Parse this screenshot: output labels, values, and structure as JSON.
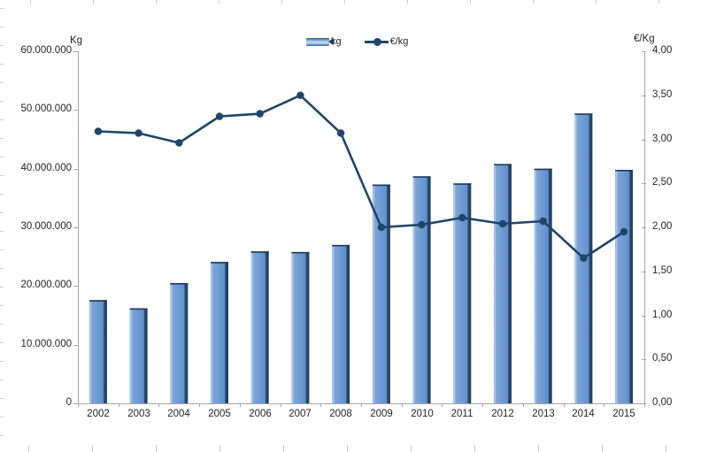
{
  "chart_data": {
    "type": "bar",
    "subtype": "combo-bar-line",
    "title": "",
    "categories": [
      "2002",
      "2003",
      "2004",
      "2005",
      "2006",
      "2007",
      "2008",
      "2009",
      "2010",
      "2011",
      "2012",
      "2013",
      "2014",
      "2015"
    ],
    "series": [
      {
        "name": "kg",
        "type": "bar",
        "axis": "left",
        "values": [
          17600000,
          16200000,
          20500000,
          24100000,
          25900000,
          25800000,
          27000000,
          37300000,
          38700000,
          37500000,
          40800000,
          40000000,
          49400000,
          39800000
        ]
      },
      {
        "name": "€/kg",
        "type": "line",
        "axis": "right",
        "values": [
          3.09,
          3.07,
          2.96,
          3.26,
          3.29,
          3.5,
          3.07,
          2.0,
          2.03,
          2.11,
          2.04,
          2.07,
          1.65,
          1.95
        ]
      }
    ],
    "left_axis": {
      "unit": "Kg",
      "min": 0,
      "max": 60000000,
      "step": 10000000,
      "tick_labels": [
        "60.000.000",
        "50.000.000",
        "40.000.000",
        "30.000.000",
        "20.000.000",
        "10.000.000",
        "0"
      ]
    },
    "right_axis": {
      "unit": "€/Kg",
      "min": 0,
      "max": 4,
      "step": 0.5,
      "tick_labels": [
        "4,00",
        "3,50",
        "3,00",
        "2,50",
        "2,00",
        "1,50",
        "1,00",
        "0,50",
        "0,00"
      ]
    },
    "legend_position": "top-center",
    "grid": false
  },
  "legend": {
    "kg_label": "kg",
    "eur_label": "€/kg"
  },
  "colors": {
    "bar_face": "#6b98d2",
    "bar_highlight": "#b7cfec",
    "bar_shadow": "#1d3a5b",
    "line": "#1f4569",
    "axis": "#a6a6a6",
    "text": "#262626"
  }
}
